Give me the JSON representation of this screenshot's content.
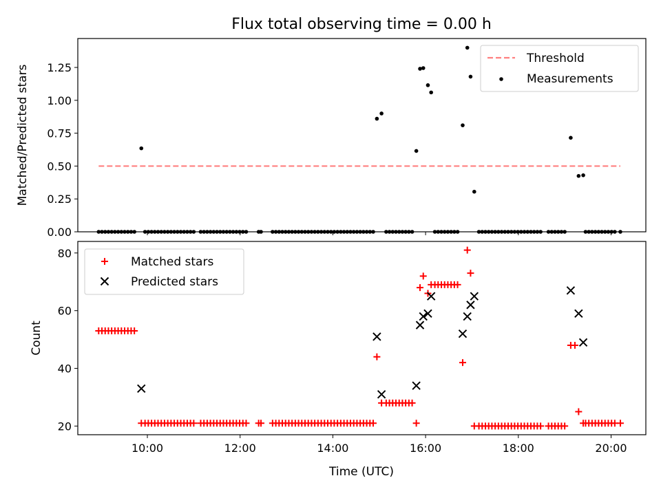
{
  "title": "Flux total observing time = 0.00 h",
  "colors": {
    "threshold": "#ff7f7f",
    "measurement": "#000000",
    "matched": "#ff0000",
    "predicted": "#000000",
    "axis": "#000000"
  },
  "chart_data": [
    {
      "type": "scatter",
      "ylabel": "Matched/Predicted stars",
      "xlim": [
        8.5,
        20.75
      ],
      "ylim": [
        0,
        1.47
      ],
      "yticks": [
        0,
        0.25,
        0.5,
        0.75,
        1.0,
        1.25
      ],
      "ytick_labels": [
        "0.00",
        "0.25",
        "0.50",
        "0.75",
        "1.00",
        "1.25"
      ],
      "legend": {
        "position": "upper-right",
        "entries": [
          "Threshold",
          "Measurements"
        ]
      },
      "threshold": {
        "name": "Threshold",
        "value": 0.5,
        "x_range": [
          8.95,
          20.2
        ]
      },
      "series": [
        {
          "name": "Measurements",
          "points": [
            [
              9.87,
              0.635
            ],
            [
              14.95,
              0.86
            ],
            [
              15.05,
              0.9
            ],
            [
              15.8,
              0.615
            ],
            [
              15.88,
              1.24
            ],
            [
              15.95,
              1.245
            ],
            [
              16.05,
              1.115
            ],
            [
              16.12,
              1.06
            ],
            [
              16.8,
              0.81
            ],
            [
              16.9,
              1.4
            ],
            [
              16.97,
              1.18
            ],
            [
              17.05,
              0.305
            ],
            [
              19.13,
              0.715
            ],
            [
              19.3,
              0.425
            ],
            [
              19.4,
              0.43
            ]
          ],
          "zero_x": [
            8.95,
            9.02,
            9.09,
            9.16,
            9.23,
            9.3,
            9.37,
            9.44,
            9.51,
            9.58,
            9.65,
            9.72,
            9.95,
            10.02,
            10.09,
            10.16,
            10.23,
            10.3,
            10.37,
            10.44,
            10.51,
            10.58,
            10.65,
            10.72,
            10.79,
            10.86,
            10.93,
            11.0,
            11.15,
            11.22,
            11.29,
            11.36,
            11.43,
            11.5,
            11.57,
            11.64,
            11.71,
            11.78,
            11.85,
            11.92,
            11.99,
            12.06,
            12.13,
            12.4,
            12.45,
            12.7,
            12.77,
            12.84,
            12.91,
            12.98,
            13.05,
            13.12,
            13.19,
            13.26,
            13.33,
            13.4,
            13.47,
            13.54,
            13.61,
            13.68,
            13.75,
            13.82,
            13.89,
            13.96,
            14.03,
            14.1,
            14.17,
            14.24,
            14.31,
            14.38,
            14.45,
            14.52,
            14.59,
            14.66,
            14.73,
            14.8,
            14.87,
            15.15,
            15.22,
            15.29,
            15.36,
            15.43,
            15.5,
            15.57,
            15.64,
            15.71,
            16.2,
            16.27,
            16.34,
            16.41,
            16.48,
            16.55,
            16.62,
            16.69,
            17.15,
            17.22,
            17.29,
            17.36,
            17.43,
            17.5,
            17.57,
            17.64,
            17.71,
            17.78,
            17.85,
            17.92,
            17.99,
            18.06,
            18.13,
            18.2,
            18.27,
            18.34,
            18.41,
            18.48,
            18.65,
            18.72,
            18.79,
            18.86,
            18.93,
            19.0,
            19.45,
            19.52,
            19.59,
            19.66,
            19.73,
            19.8,
            19.87,
            19.94,
            20.01,
            20.08,
            20.2
          ]
        }
      ]
    },
    {
      "type": "scatter",
      "xlabel": "Time (UTC)",
      "ylabel": "Count",
      "xlim": [
        8.5,
        20.75
      ],
      "ylim": [
        17,
        84
      ],
      "xticks": [
        10,
        12,
        14,
        16,
        18,
        20
      ],
      "xtick_labels": [
        "10:00",
        "12:00",
        "14:00",
        "16:00",
        "18:00",
        "20:00"
      ],
      "yticks": [
        20,
        40,
        60,
        80
      ],
      "ytick_labels": [
        "20",
        "40",
        "60",
        "80"
      ],
      "legend": {
        "position": "upper-left",
        "entries": [
          "Matched stars",
          "Predicted stars"
        ]
      },
      "series": [
        {
          "name": "Matched stars",
          "marker": "plus",
          "points": [
            [
              8.95,
              53
            ],
            [
              9.02,
              53
            ],
            [
              9.09,
              53
            ],
            [
              9.16,
              53
            ],
            [
              9.23,
              53
            ],
            [
              9.3,
              53
            ],
            [
              9.37,
              53
            ],
            [
              9.44,
              53
            ],
            [
              9.51,
              53
            ],
            [
              9.58,
              53
            ],
            [
              9.65,
              53
            ],
            [
              9.72,
              53
            ],
            [
              9.87,
              21
            ],
            [
              9.95,
              21
            ],
            [
              10.02,
              21
            ],
            [
              10.09,
              21
            ],
            [
              10.16,
              21
            ],
            [
              10.23,
              21
            ],
            [
              10.3,
              21
            ],
            [
              10.37,
              21
            ],
            [
              10.44,
              21
            ],
            [
              10.51,
              21
            ],
            [
              10.58,
              21
            ],
            [
              10.65,
              21
            ],
            [
              10.72,
              21
            ],
            [
              10.79,
              21
            ],
            [
              10.86,
              21
            ],
            [
              10.93,
              21
            ],
            [
              11.0,
              21
            ],
            [
              11.15,
              21
            ],
            [
              11.22,
              21
            ],
            [
              11.29,
              21
            ],
            [
              11.36,
              21
            ],
            [
              11.43,
              21
            ],
            [
              11.5,
              21
            ],
            [
              11.57,
              21
            ],
            [
              11.64,
              21
            ],
            [
              11.71,
              21
            ],
            [
              11.78,
              21
            ],
            [
              11.85,
              21
            ],
            [
              11.92,
              21
            ],
            [
              11.99,
              21
            ],
            [
              12.06,
              21
            ],
            [
              12.13,
              21
            ],
            [
              12.4,
              21
            ],
            [
              12.45,
              21
            ],
            [
              12.7,
              21
            ],
            [
              12.77,
              21
            ],
            [
              12.84,
              21
            ],
            [
              12.91,
              21
            ],
            [
              12.98,
              21
            ],
            [
              13.05,
              21
            ],
            [
              13.12,
              21
            ],
            [
              13.19,
              21
            ],
            [
              13.26,
              21
            ],
            [
              13.33,
              21
            ],
            [
              13.4,
              21
            ],
            [
              13.47,
              21
            ],
            [
              13.54,
              21
            ],
            [
              13.61,
              21
            ],
            [
              13.68,
              21
            ],
            [
              13.75,
              21
            ],
            [
              13.82,
              21
            ],
            [
              13.89,
              21
            ],
            [
              13.96,
              21
            ],
            [
              14.03,
              21
            ],
            [
              14.1,
              21
            ],
            [
              14.17,
              21
            ],
            [
              14.24,
              21
            ],
            [
              14.31,
              21
            ],
            [
              14.38,
              21
            ],
            [
              14.45,
              21
            ],
            [
              14.52,
              21
            ],
            [
              14.59,
              21
            ],
            [
              14.66,
              21
            ],
            [
              14.73,
              21
            ],
            [
              14.8,
              21
            ],
            [
              14.87,
              21
            ],
            [
              14.95,
              44
            ],
            [
              15.05,
              28
            ],
            [
              15.15,
              28
            ],
            [
              15.22,
              28
            ],
            [
              15.29,
              28
            ],
            [
              15.36,
              28
            ],
            [
              15.43,
              28
            ],
            [
              15.5,
              28
            ],
            [
              15.57,
              28
            ],
            [
              15.64,
              28
            ],
            [
              15.71,
              28
            ],
            [
              15.8,
              21
            ],
            [
              15.88,
              68
            ],
            [
              15.95,
              72
            ],
            [
              16.05,
              66
            ],
            [
              16.12,
              69
            ],
            [
              16.2,
              69
            ],
            [
              16.27,
              69
            ],
            [
              16.34,
              69
            ],
            [
              16.41,
              69
            ],
            [
              16.48,
              69
            ],
            [
              16.55,
              69
            ],
            [
              16.62,
              69
            ],
            [
              16.69,
              69
            ],
            [
              16.8,
              42
            ],
            [
              16.9,
              81
            ],
            [
              16.97,
              73
            ],
            [
              17.05,
              20
            ],
            [
              17.15,
              20
            ],
            [
              17.22,
              20
            ],
            [
              17.29,
              20
            ],
            [
              17.36,
              20
            ],
            [
              17.43,
              20
            ],
            [
              17.5,
              20
            ],
            [
              17.57,
              20
            ],
            [
              17.64,
              20
            ],
            [
              17.71,
              20
            ],
            [
              17.78,
              20
            ],
            [
              17.85,
              20
            ],
            [
              17.92,
              20
            ],
            [
              17.99,
              20
            ],
            [
              18.06,
              20
            ],
            [
              18.13,
              20
            ],
            [
              18.2,
              20
            ],
            [
              18.27,
              20
            ],
            [
              18.34,
              20
            ],
            [
              18.41,
              20
            ],
            [
              18.48,
              20
            ],
            [
              18.65,
              20
            ],
            [
              18.72,
              20
            ],
            [
              18.79,
              20
            ],
            [
              18.86,
              20
            ],
            [
              18.93,
              20
            ],
            [
              19.0,
              20
            ],
            [
              19.13,
              48
            ],
            [
              19.22,
              48
            ],
            [
              19.3,
              25
            ],
            [
              19.4,
              21
            ],
            [
              19.45,
              21
            ],
            [
              19.52,
              21
            ],
            [
              19.59,
              21
            ],
            [
              19.66,
              21
            ],
            [
              19.73,
              21
            ],
            [
              19.8,
              21
            ],
            [
              19.87,
              21
            ],
            [
              19.94,
              21
            ],
            [
              20.01,
              21
            ],
            [
              20.08,
              21
            ],
            [
              20.2,
              21
            ]
          ]
        },
        {
          "name": "Predicted stars",
          "marker": "x",
          "points": [
            [
              9.87,
              33
            ],
            [
              14.95,
              51
            ],
            [
              15.05,
              31
            ],
            [
              15.8,
              34
            ],
            [
              15.88,
              55
            ],
            [
              15.95,
              58
            ],
            [
              16.05,
              59
            ],
            [
              16.12,
              65
            ],
            [
              16.8,
              52
            ],
            [
              16.9,
              58
            ],
            [
              16.97,
              62
            ],
            [
              17.05,
              65
            ],
            [
              19.13,
              67
            ],
            [
              19.3,
              59
            ],
            [
              19.4,
              49
            ]
          ]
        }
      ]
    }
  ]
}
